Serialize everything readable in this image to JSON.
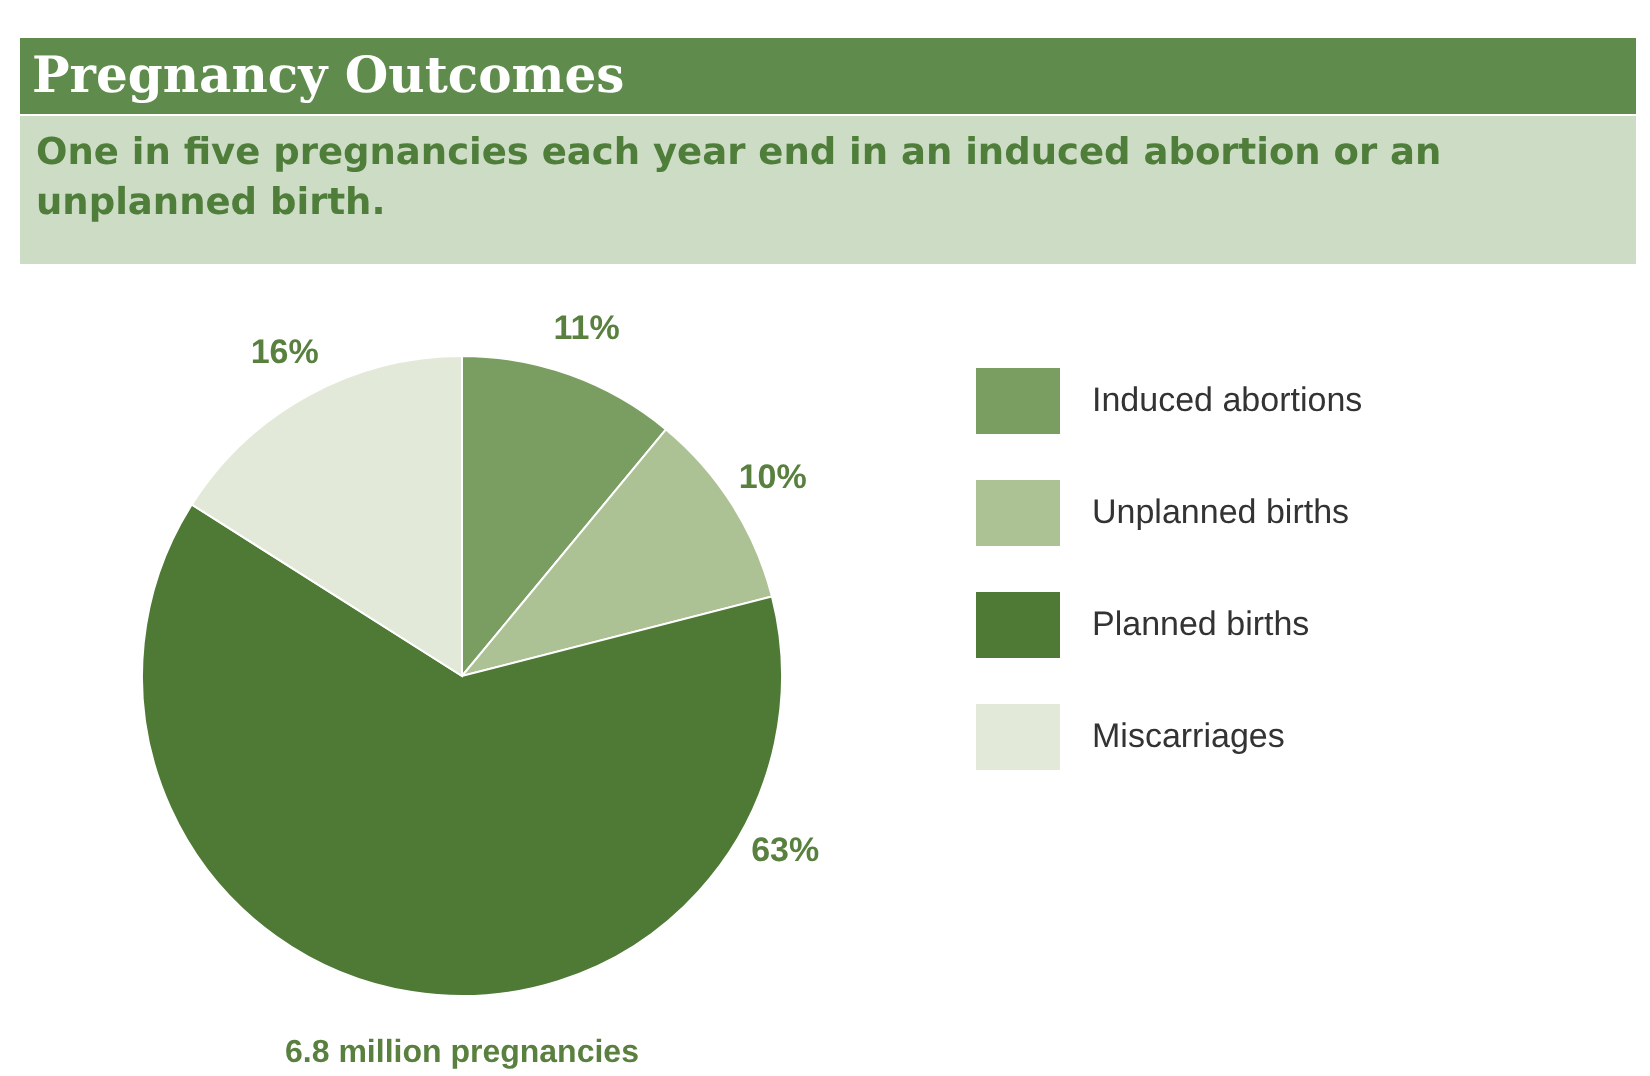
{
  "chart_data": {
    "type": "pie",
    "title": "Pregnancy Outcomes",
    "subtitle": "One in five pregnancies each year end in an induced abortion or an unplanned birth.",
    "categories": [
      "Induced abortions",
      "Unplanned births",
      "Planned births",
      "Miscarriages"
    ],
    "values": [
      11,
      10,
      63,
      16
    ],
    "value_labels": [
      "11%",
      "10%",
      "63%",
      "16%"
    ],
    "colors": [
      "#7a9e62",
      "#adc294",
      "#4e7a36",
      "#e3e9d8"
    ],
    "legend": "right",
    "annotations": [
      "6.8 million pregnancies"
    ]
  }
}
